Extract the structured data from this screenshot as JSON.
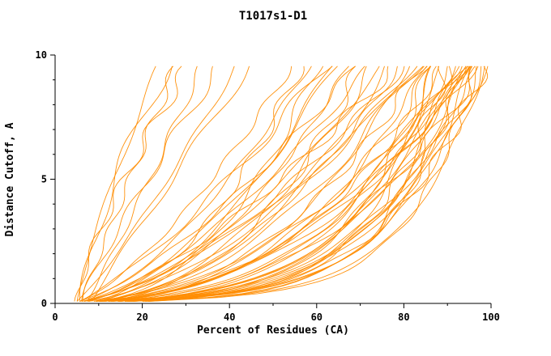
{
  "chart_data": {
    "type": "line",
    "title": "T1017s1-D1",
    "xlabel": "Percent of Residues (CA)",
    "ylabel": "Distance Cutoff, A",
    "xlim": [
      0,
      100
    ],
    "ylim": [
      0,
      10
    ],
    "x_ticks": [
      0,
      20,
      40,
      60,
      80,
      100
    ],
    "y_ticks": [
      0,
      5,
      10
    ],
    "x_minor_step": 10,
    "y_minor_step": 1,
    "grid": false,
    "legend": "none",
    "line_color": "#ff8c00",
    "axis_color": "#000000",
    "background": "#ffffff",
    "y_curve_max": 9.55,
    "curve_model": "x(y) = x0 + (xe - x0) * (y/9.55)^q * (y/(y+0.15)), y in [0.08, 9.55]",
    "curves": [
      [
        5,
        24,
        1.2
      ],
      [
        6,
        28,
        1.0
      ],
      [
        5,
        31,
        1.3
      ],
      [
        7,
        34,
        0.9
      ],
      [
        6,
        38,
        1.1
      ],
      [
        5,
        42,
        0.85
      ],
      [
        8,
        45,
        1.0
      ],
      [
        6,
        26,
        1.4
      ],
      [
        5,
        55,
        0.7
      ],
      [
        7,
        57,
        0.5
      ],
      [
        6,
        59,
        0.65
      ],
      [
        8,
        61,
        0.45
      ],
      [
        5,
        63,
        0.75
      ],
      [
        9,
        64,
        0.55
      ],
      [
        6,
        66,
        0.6
      ],
      [
        7,
        68,
        0.5
      ],
      [
        5,
        70,
        0.7
      ],
      [
        8,
        71,
        0.42
      ],
      [
        6,
        73,
        0.65
      ],
      [
        9,
        74,
        0.5
      ],
      [
        5,
        76,
        0.58
      ],
      [
        7,
        77,
        0.45
      ],
      [
        6,
        79,
        0.68
      ],
      [
        8,
        80,
        0.5
      ],
      [
        5,
        81,
        0.6
      ],
      [
        9,
        82,
        0.4
      ],
      [
        6,
        83,
        0.55
      ],
      [
        7,
        84,
        0.48
      ],
      [
        5,
        85,
        0.62
      ],
      [
        8,
        85,
        0.44
      ],
      [
        5,
        86,
        0.35
      ],
      [
        6,
        87,
        0.22
      ],
      [
        7,
        88,
        0.4
      ],
      [
        5,
        88,
        0.18
      ],
      [
        8,
        89,
        0.3
      ],
      [
        6,
        90,
        0.25
      ],
      [
        5,
        90,
        0.38
      ],
      [
        7,
        91,
        0.2
      ],
      [
        6,
        92,
        0.33
      ],
      [
        8,
        92,
        0.17
      ],
      [
        5,
        93,
        0.28
      ],
      [
        7,
        93,
        0.42
      ],
      [
        6,
        94,
        0.22
      ],
      [
        5,
        94,
        0.35
      ],
      [
        8,
        95,
        0.19
      ],
      [
        6,
        95,
        0.3
      ],
      [
        7,
        96,
        0.24
      ],
      [
        5,
        96,
        0.4
      ],
      [
        6,
        97,
        0.2
      ],
      [
        8,
        97,
        0.32
      ],
      [
        5,
        98,
        0.26
      ],
      [
        7,
        98,
        0.16
      ],
      [
        6,
        99,
        0.36
      ],
      [
        5,
        99,
        0.21
      ],
      [
        7,
        100,
        0.3
      ],
      [
        6,
        100,
        0.18
      ],
      [
        8,
        100,
        0.27
      ],
      [
        5,
        100,
        0.23
      ],
      [
        6,
        98,
        0.45
      ],
      [
        7,
        95,
        0.5
      ]
    ]
  }
}
